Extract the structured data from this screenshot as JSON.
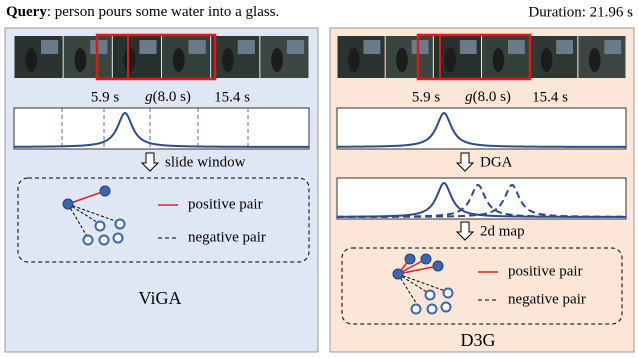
{
  "header": {
    "query_label": "Query",
    "query_text": ": person pours some water into a glass.",
    "duration": "Duration: 21.96 s"
  },
  "left_panel": {
    "times": {
      "start": "5.9 s",
      "glance_symbol": "g",
      "glance": "(8.0 s)",
      "end": "15.4 s"
    },
    "step": "slide window",
    "legend": {
      "positive": "positive pair",
      "negative": "negative pair"
    },
    "name": "ViGA"
  },
  "right_panel": {
    "times": {
      "start": "5.9 s",
      "glance_symbol": "g",
      "glance": "(8.0 s)",
      "end": "15.4 s"
    },
    "steps": [
      "DGA",
      "2d map"
    ],
    "legend": {
      "positive": "positive pair",
      "negative": "negative pair"
    },
    "name": "D3G"
  }
}
